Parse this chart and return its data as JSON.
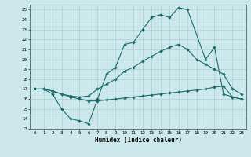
{
  "xlabel": "Humidex (Indice chaleur)",
  "background_color": "#cce8ea",
  "grid_color": "#aad0d4",
  "line_color": "#1a6b6b",
  "xlim": [
    -0.5,
    23.5
  ],
  "ylim": [
    13,
    25.5
  ],
  "xticks": [
    0,
    1,
    2,
    3,
    4,
    5,
    6,
    7,
    8,
    9,
    10,
    11,
    12,
    13,
    14,
    15,
    16,
    17,
    18,
    19,
    20,
    21,
    22,
    23
  ],
  "yticks": [
    13,
    14,
    15,
    16,
    17,
    18,
    19,
    20,
    21,
    22,
    23,
    24,
    25
  ],
  "line1_x": [
    0,
    1,
    2,
    3,
    4,
    5,
    6,
    7,
    8,
    9,
    10,
    11,
    12,
    13,
    14,
    15,
    16,
    17,
    19,
    20,
    21,
    22,
    23
  ],
  "line1_y": [
    17,
    17,
    16.5,
    15,
    14,
    13.8,
    13.5,
    16,
    18.5,
    19.2,
    21.5,
    21.7,
    23,
    24.2,
    24.5,
    24.2,
    25.2,
    25.0,
    20.0,
    21.2,
    16.5,
    16.2,
    16.0
  ],
  "line2_x": [
    0,
    1,
    2,
    3,
    4,
    5,
    6,
    7,
    8,
    9,
    10,
    11,
    12,
    13,
    14,
    15,
    16,
    17,
    18,
    19,
    20,
    21,
    22,
    23
  ],
  "line2_y": [
    17,
    17,
    16.8,
    16.5,
    16.3,
    16.2,
    16.3,
    17.0,
    17.5,
    18.0,
    18.8,
    19.2,
    19.8,
    20.3,
    20.8,
    21.2,
    21.5,
    21.0,
    20.0,
    19.5,
    19.0,
    18.5,
    17.0,
    16.5
  ],
  "line3_x": [
    0,
    1,
    2,
    3,
    4,
    5,
    6,
    7,
    8,
    9,
    10,
    11,
    12,
    13,
    14,
    15,
    16,
    17,
    18,
    19,
    20,
    21,
    22,
    23
  ],
  "line3_y": [
    17,
    17,
    16.8,
    16.5,
    16.2,
    16.0,
    15.8,
    15.8,
    15.9,
    16.0,
    16.1,
    16.2,
    16.3,
    16.4,
    16.5,
    16.6,
    16.7,
    16.8,
    16.9,
    17.0,
    17.2,
    17.3,
    16.2,
    16.0
  ]
}
